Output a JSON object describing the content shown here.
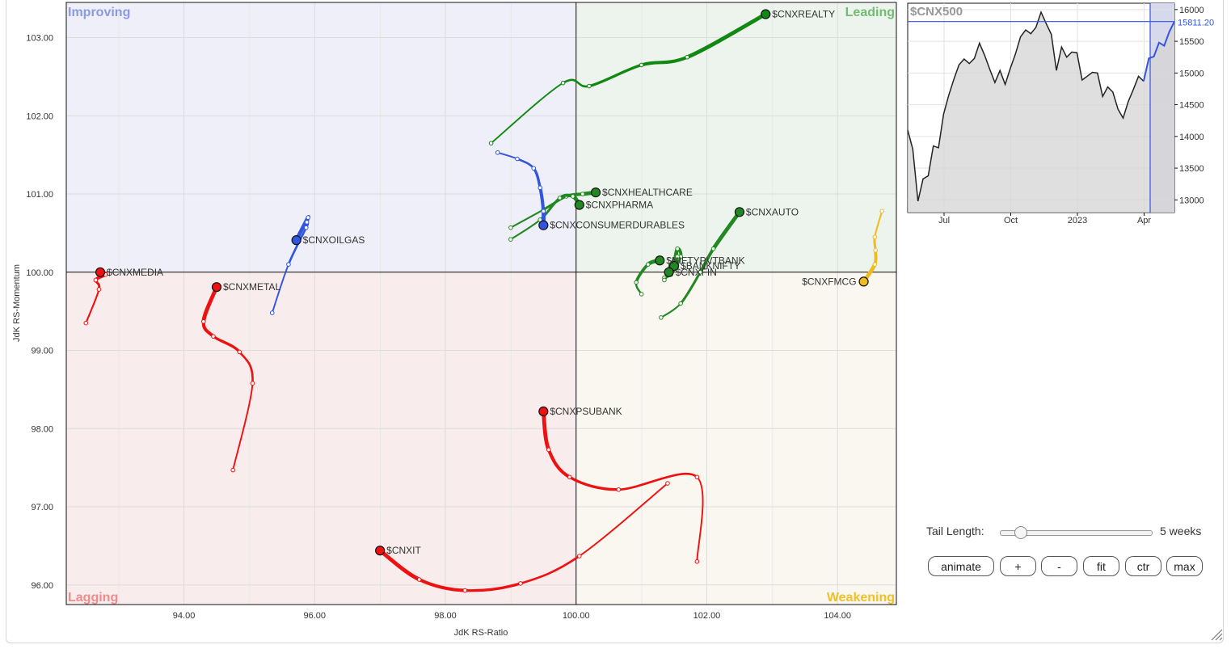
{
  "chart_data": [
    {
      "type": "scatter",
      "subtype": "relative-rotation-graph",
      "xlabel": "JdK RS-Ratio",
      "ylabel": "JdK RS-Momentum",
      "xlim": [
        92.2,
        104.9
      ],
      "ylim": [
        95.75,
        103.45
      ],
      "x_ticks": [
        94,
        96,
        98,
        100,
        102,
        104
      ],
      "y_ticks": [
        96,
        97,
        98,
        99,
        100,
        101,
        102,
        103
      ],
      "tick_format_decimals": 2,
      "grid": true,
      "center": [
        100,
        100
      ],
      "quadrants": [
        {
          "name": "Improving",
          "position": "top-left",
          "color": "#8a9ae0",
          "fill": "#eeeff9"
        },
        {
          "name": "Leading",
          "position": "top-right",
          "color": "#73bb73",
          "fill": "#edf4ed"
        },
        {
          "name": "Lagging",
          "position": "bottom-left",
          "color": "#f08c8c",
          "fill": "#f9ecec"
        },
        {
          "name": "Weakening",
          "position": "bottom-right",
          "color": "#f0c02a",
          "fill": "#f9f7ef"
        }
      ],
      "series": [
        {
          "name": "$CNXREALTY",
          "color": "#118811",
          "label_pos": "right",
          "points": [
            [
              98.7,
              101.65
            ],
            [
              99.8,
              102.42
            ],
            [
              100.2,
              102.38
            ],
            [
              101.0,
              102.65
            ],
            [
              101.7,
              102.75
            ],
            [
              102.9,
              103.3
            ]
          ]
        },
        {
          "name": "$CNXHEALTHCARE",
          "color": "#228822",
          "label_pos": "right",
          "points": [
            [
              99.0,
              100.57
            ],
            [
              99.5,
              100.8
            ],
            [
              99.85,
              100.97
            ],
            [
              100.1,
              101.0
            ],
            [
              100.3,
              101.02
            ]
          ]
        },
        {
          "name": "$CNXPHARMA",
          "color": "#228822",
          "label_pos": "right",
          "points": [
            [
              99.0,
              100.42
            ],
            [
              99.45,
              100.67
            ],
            [
              99.75,
              100.95
            ],
            [
              99.95,
              100.97
            ],
            [
              100.05,
              100.86
            ]
          ]
        },
        {
          "name": "$CNXCONSUMERDURABLES",
          "color": "#3355dd",
          "label_pos": "right",
          "points": [
            [
              98.8,
              101.53
            ],
            [
              99.1,
              101.45
            ],
            [
              99.35,
              101.33
            ],
            [
              99.45,
              101.08
            ],
            [
              99.5,
              100.78
            ],
            [
              99.5,
              100.6
            ]
          ]
        },
        {
          "name": "$CNXAUTO",
          "color": "#228822",
          "label_pos": "right",
          "points": [
            [
              101.3,
              99.42
            ],
            [
              101.6,
              99.6
            ],
            [
              101.9,
              100.0
            ],
            [
              102.1,
              100.3
            ],
            [
              102.5,
              100.77
            ]
          ]
        },
        {
          "name": "$NIFTYPVTBANK",
          "color": "#228822",
          "label_pos": "right",
          "points": [
            [
              101.0,
              99.72
            ],
            [
              100.92,
              99.87
            ],
            [
              101.1,
              100.1
            ],
            [
              101.28,
              100.15
            ]
          ]
        },
        {
          "name": "$BANKNIFTY",
          "color": "#228822",
          "label_pos": "right",
          "points": [
            [
              101.35,
              99.93
            ],
            [
              101.45,
              99.97
            ],
            [
              101.6,
              100.2
            ],
            [
              101.55,
              100.3
            ],
            [
              101.5,
              100.08
            ]
          ]
        },
        {
          "name": "$CNXFIN",
          "color": "#228822",
          "label_pos": "right",
          "points": [
            [
              101.35,
              99.9
            ],
            [
              101.45,
              100.0
            ],
            [
              101.55,
              100.2
            ],
            [
              101.45,
              100.1
            ],
            [
              101.42,
              100.0
            ]
          ]
        },
        {
          "name": "$CNXFMCG",
          "color": "#eebb22",
          "label_pos": "left",
          "points": [
            [
              104.68,
              100.78
            ],
            [
              104.57,
              100.45
            ],
            [
              104.58,
              100.28
            ],
            [
              104.57,
              100.1
            ],
            [
              104.4,
              99.88
            ]
          ]
        },
        {
          "name": "$CNXOILGAS",
          "color": "#3355dd",
          "label_pos": "right",
          "points": [
            [
              95.35,
              99.48
            ],
            [
              95.6,
              100.1
            ],
            [
              95.87,
              100.57
            ],
            [
              95.88,
              100.64
            ],
            [
              95.9,
              100.7
            ],
            [
              95.72,
              100.41
            ]
          ]
        },
        {
          "name": "$CNXMEDIA",
          "color": "#ee1111",
          "label_pos": "right",
          "points": [
            [
              92.5,
              99.35
            ],
            [
              92.7,
              99.78
            ],
            [
              92.65,
              99.9
            ],
            [
              92.8,
              99.97
            ],
            [
              92.72,
              100.0
            ]
          ]
        },
        {
          "name": "$CNXMETAL",
          "color": "#ee1111",
          "label_pos": "right",
          "points": [
            [
              94.75,
              97.47
            ],
            [
              95.05,
              98.58
            ],
            [
              94.85,
              98.98
            ],
            [
              94.45,
              99.18
            ],
            [
              94.3,
              99.37
            ],
            [
              94.5,
              99.81
            ]
          ]
        },
        {
          "name": "$CNXPSUBANK",
          "color": "#ee1111",
          "label_pos": "right",
          "points": [
            [
              101.85,
              96.3
            ],
            [
              101.85,
              97.38
            ],
            [
              100.65,
              97.22
            ],
            [
              99.9,
              97.38
            ],
            [
              99.58,
              97.73
            ],
            [
              99.5,
              98.22
            ]
          ]
        },
        {
          "name": "$CNXIT",
          "color": "#ee1111",
          "label_pos": "right",
          "points": [
            [
              101.4,
              97.3
            ],
            [
              100.05,
              96.37
            ],
            [
              99.15,
              96.02
            ],
            [
              98.3,
              95.93
            ],
            [
              97.6,
              96.07
            ],
            [
              97.0,
              96.44
            ]
          ]
        }
      ]
    },
    {
      "type": "area",
      "title": "$CNX500",
      "x_tick_labels": [
        "Jul",
        "Oct",
        "2023",
        "Apr"
      ],
      "x_ticks": [
        6,
        17,
        28,
        39
      ],
      "y_ticks": [
        13000,
        13500,
        14000,
        14500,
        15000,
        15500,
        16000
      ],
      "ylim": [
        12800,
        16100
      ],
      "xlim": [
        0,
        44
      ],
      "last_value": 15811.2,
      "last_value_label": "15811.20",
      "highlight_start": 40,
      "values": [
        14100,
        13800,
        12980,
        13330,
        13380,
        13850,
        13820,
        14350,
        14650,
        14900,
        15130,
        15220,
        15150,
        15230,
        15470,
        15280,
        15060,
        14850,
        15040,
        14820,
        15070,
        15300,
        15570,
        15680,
        15620,
        15720,
        15960,
        15780,
        15610,
        15040,
        15410,
        15250,
        15330,
        15320,
        14890,
        14950,
        15010,
        15000,
        14630,
        14780,
        14700,
        14430,
        14290,
        14550,
        14740,
        14950,
        14870,
        15230,
        15260,
        15480,
        15430,
        15650,
        15811.2
      ]
    }
  ],
  "controls": {
    "tail_length_label": "Tail Length:",
    "tail_length_value": "5 weeks",
    "tail_length_fraction": 0.1,
    "buttons": {
      "animate": "animate",
      "plus": "+",
      "minus": "-",
      "fit": "fit",
      "ctr": "ctr",
      "max": "max"
    }
  }
}
